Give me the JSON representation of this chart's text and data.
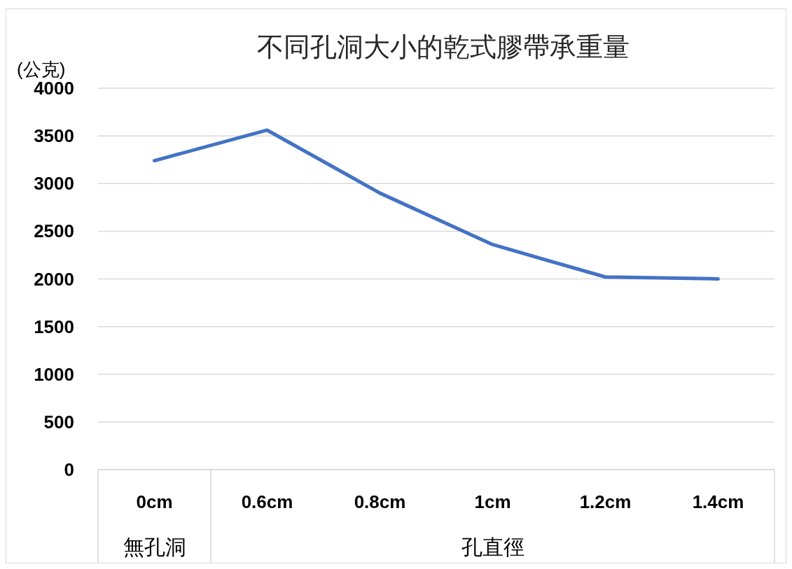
{
  "chart_data": {
    "type": "line",
    "title": "不同孔洞大小的乾式膠帶承重量",
    "ylabel": "(公克)",
    "categories": [
      "0cm",
      "0.6cm",
      "0.8cm",
      "1cm",
      "1.2cm",
      "1.4cm"
    ],
    "series": [
      {
        "color": "#4472c4",
        "values": [
          3240,
          3560,
          2900,
          2360,
          2020,
          2000
        ]
      }
    ],
    "ylim": [
      0,
      4000
    ],
    "yticks": [
      0,
      500,
      1000,
      1500,
      2000,
      2500,
      3000,
      3500,
      4000
    ],
    "grid": "y",
    "marker": "none",
    "line_style": "solid",
    "annotations": [
      "無孔洞",
      "孔直徑"
    ]
  }
}
